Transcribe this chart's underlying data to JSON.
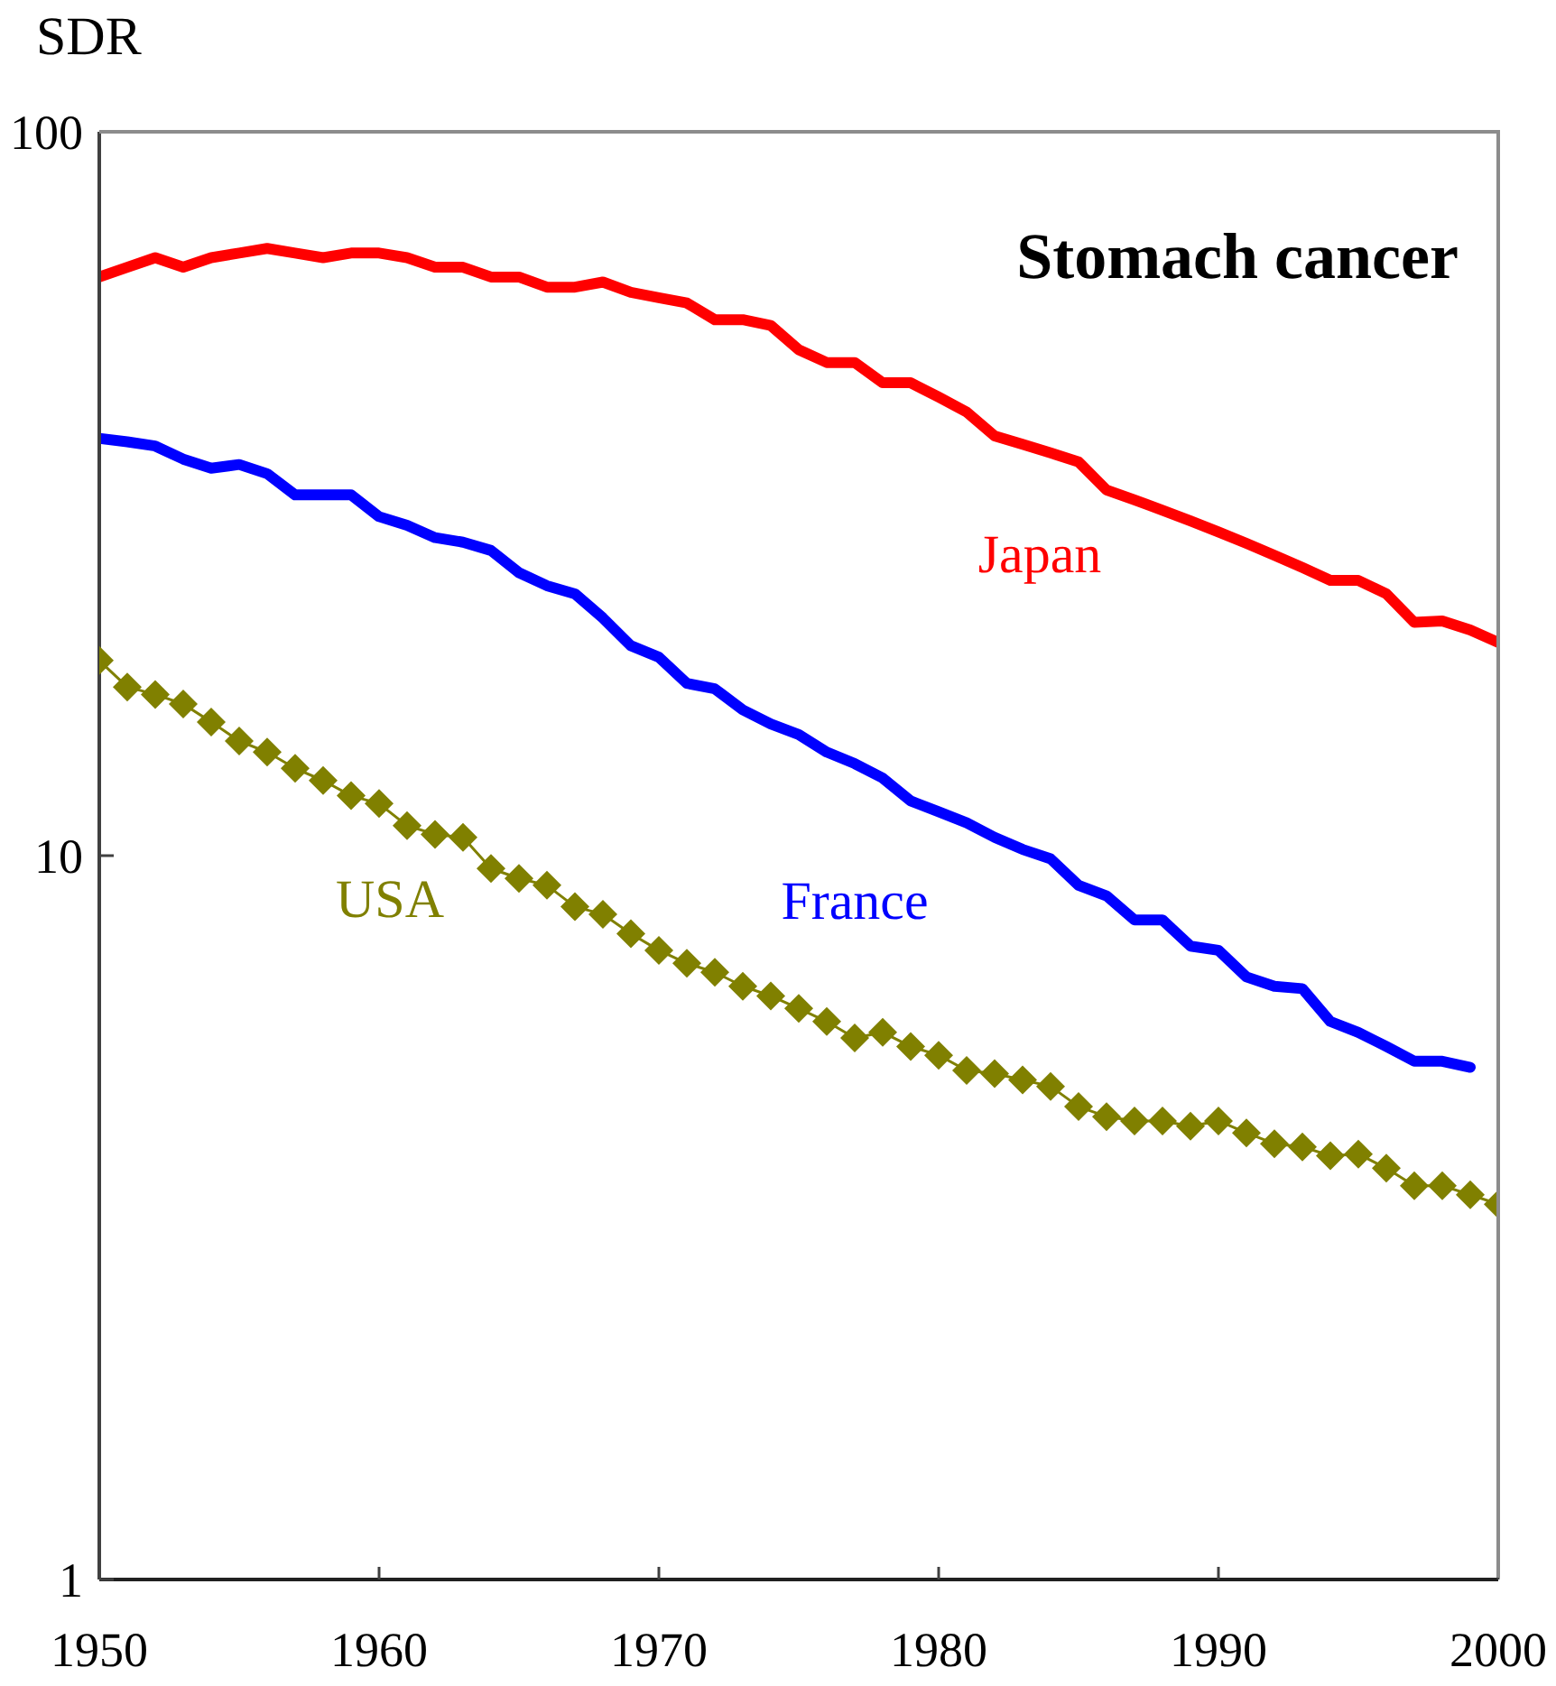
{
  "chart_data": {
    "type": "line",
    "title": "Stomach cancer",
    "ylabel": "SDR",
    "x": [
      1950,
      1951,
      1952,
      1953,
      1954,
      1955,
      1956,
      1957,
      1958,
      1959,
      1960,
      1961,
      1962,
      1963,
      1964,
      1965,
      1966,
      1967,
      1968,
      1969,
      1970,
      1971,
      1972,
      1973,
      1974,
      1975,
      1976,
      1977,
      1978,
      1979,
      1980,
      1981,
      1982,
      1983,
      1984,
      1985,
      1986,
      1987,
      1988,
      1989,
      1990,
      1991,
      1992,
      1993,
      1994,
      1995,
      1996,
      1997,
      1998,
      1999,
      2000
    ],
    "series": [
      {
        "name": "Japan",
        "color": "#ff0000",
        "values": [
          63,
          65,
          67,
          65,
          67,
          68,
          69,
          68,
          67,
          68,
          68,
          67,
          65,
          65,
          63,
          63,
          61,
          61,
          62,
          60,
          59,
          58,
          55,
          55,
          54,
          50,
          48,
          48,
          45,
          45,
          43,
          41,
          38,
          37,
          36,
          35,
          32,
          31,
          30,
          29,
          28,
          27,
          26,
          25,
          24,
          24,
          23,
          21,
          21.1,
          20.5,
          19.7
        ]
      },
      {
        "name": "France",
        "color": "#0000ff",
        "values": [
          37.7,
          37.3,
          36.8,
          35.3,
          34.3,
          34.7,
          33.7,
          31.5,
          31.5,
          31.5,
          29.4,
          28.6,
          27.5,
          27.1,
          26.4,
          24.6,
          23.6,
          23.0,
          21.3,
          19.5,
          18.8,
          17.3,
          17.0,
          15.9,
          15.2,
          14.7,
          13.9,
          13.4,
          12.8,
          11.9,
          11.5,
          11.1,
          10.6,
          10.2,
          9.9,
          9.1,
          8.8,
          8.15,
          8.15,
          7.5,
          7.4,
          6.8,
          6.6,
          6.55,
          5.9,
          5.7,
          5.45,
          5.2,
          5.2,
          5.1,
          null
        ]
      },
      {
        "name": "USA",
        "color": "#808000",
        "marker": "diamond",
        "values": [
          18.6,
          17.1,
          16.7,
          16.2,
          15.3,
          14.4,
          13.9,
          13.2,
          12.7,
          12.1,
          11.8,
          11.0,
          10.7,
          10.6,
          9.6,
          9.3,
          9.1,
          8.5,
          8.3,
          7.8,
          7.4,
          7.1,
          6.9,
          6.6,
          6.4,
          6.15,
          5.9,
          5.6,
          5.7,
          5.45,
          5.3,
          5.05,
          5.0,
          4.9,
          4.8,
          4.5,
          4.36,
          4.3,
          4.3,
          4.23,
          4.3,
          4.14,
          4.0,
          3.96,
          3.85,
          3.87,
          3.7,
          3.5,
          3.5,
          3.4,
          3.3
        ]
      }
    ],
    "xlim": [
      1950,
      2000
    ],
    "xticks": [
      1950,
      1960,
      1970,
      1980,
      1990,
      2000
    ],
    "ylim": [
      1,
      100
    ],
    "yticks": [
      1,
      10,
      100
    ],
    "log": true
  }
}
